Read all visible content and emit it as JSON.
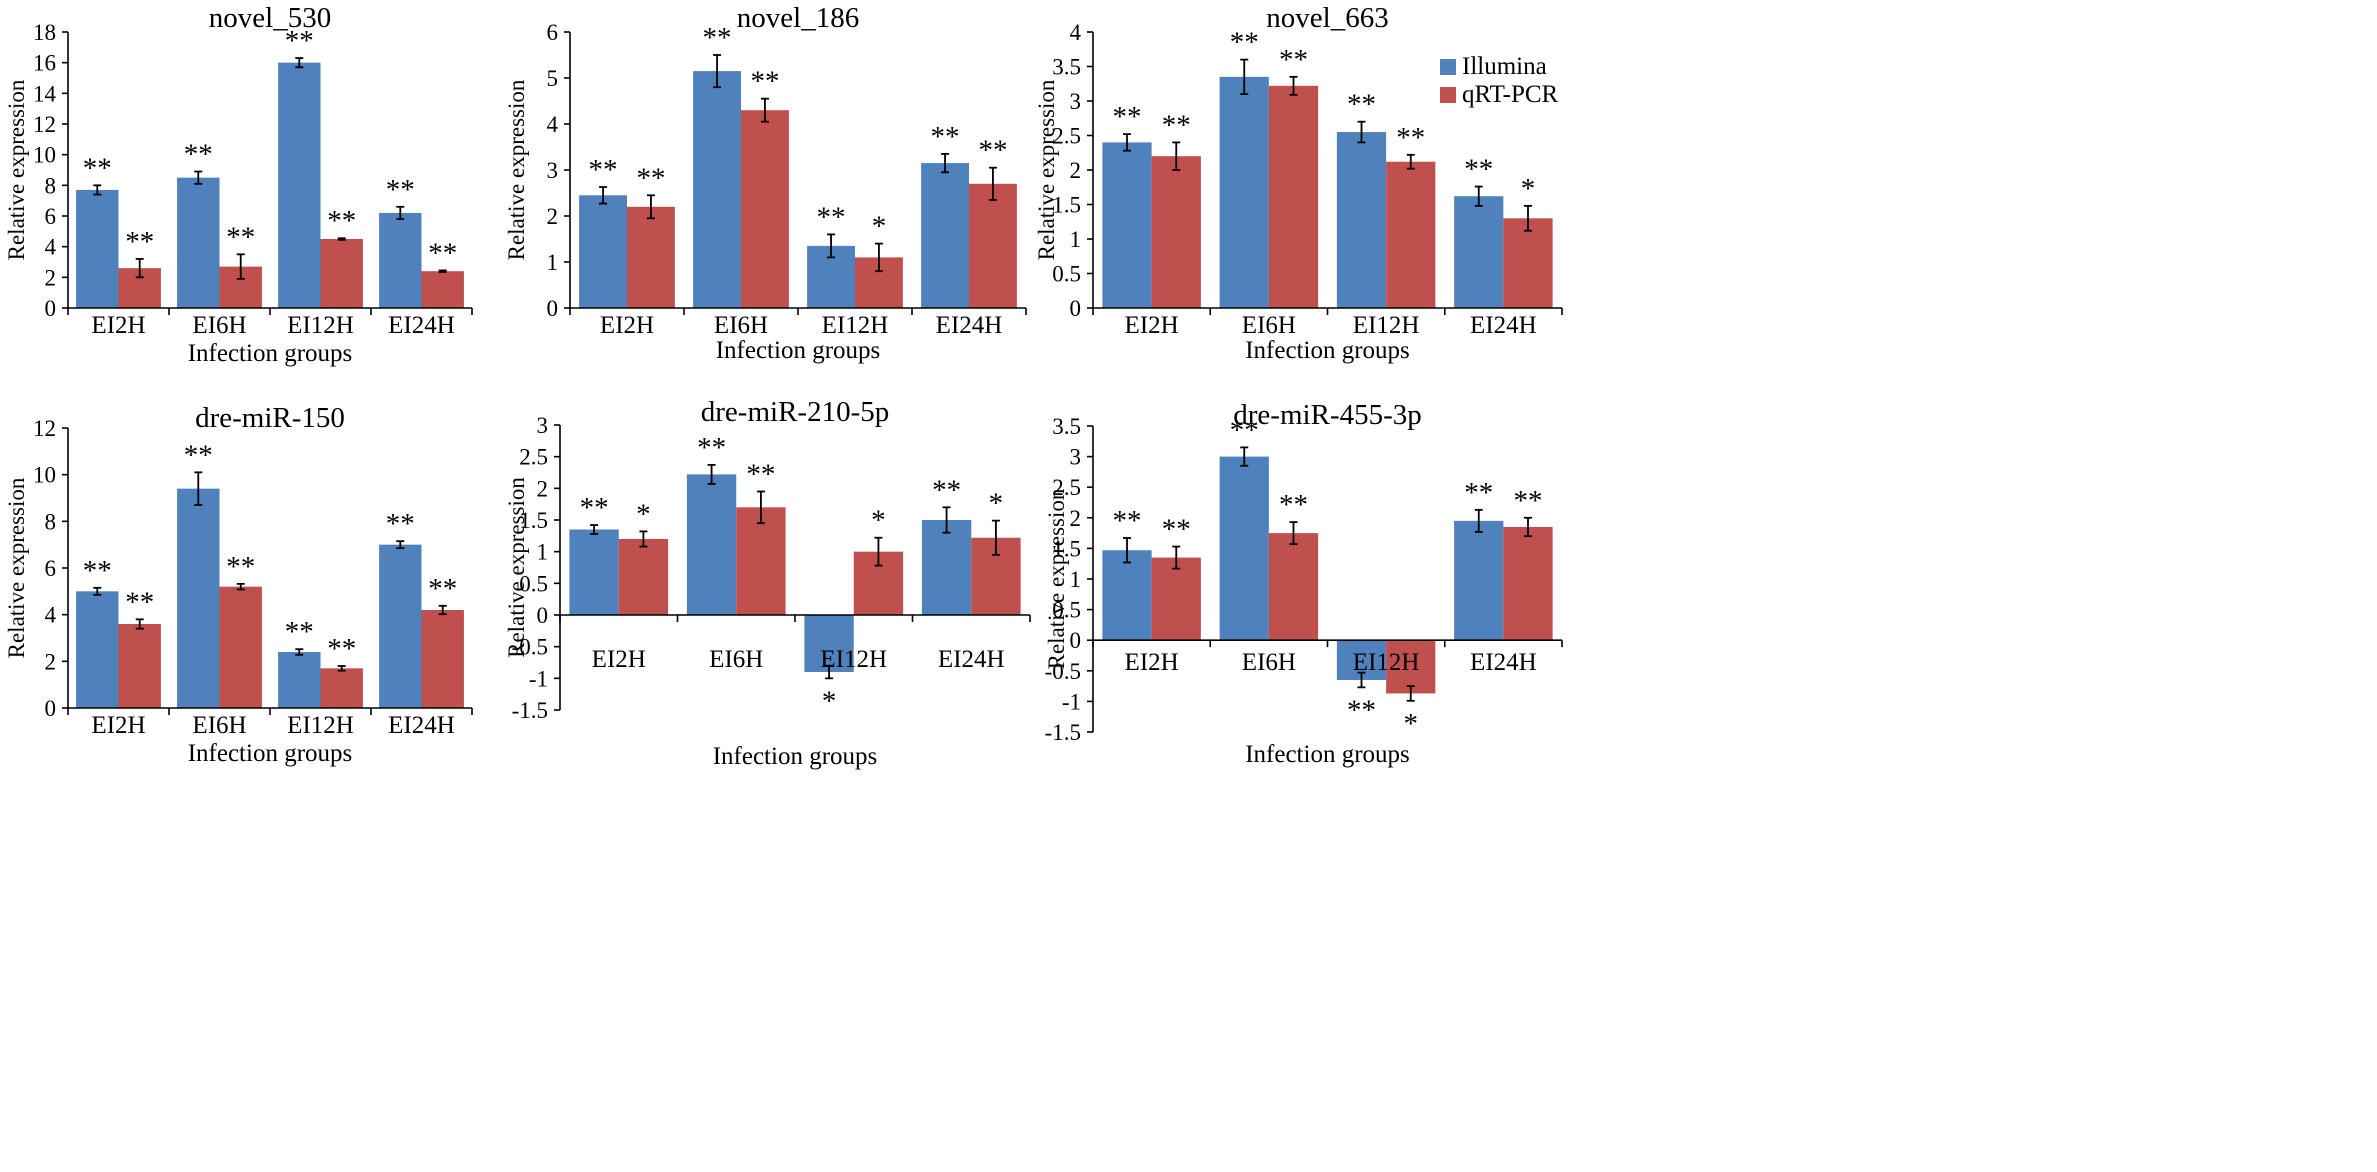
{
  "legend": [
    {
      "name": "Illumina",
      "color": "#4f81bd"
    },
    {
      "name": "qRT-PCR",
      "color": "#c0504d"
    }
  ],
  "chart_data": [
    {
      "type": "bar",
      "title": "novel_530",
      "categories": [
        "EI2H",
        "EI6H",
        "EI12H",
        "EI24H"
      ],
      "xlabel": "Infection groups",
      "ylabel": "Relative expression",
      "ylim": [
        0,
        18
      ],
      "yticks": [
        "0",
        "2",
        "4",
        "6",
        "8",
        "10",
        "12",
        "14",
        "16",
        "18"
      ],
      "series": [
        {
          "name": "Illumina",
          "values": [
            7.7,
            8.5,
            16.0,
            6.2
          ],
          "errors": [
            0.3,
            0.4,
            0.3,
            0.4
          ],
          "significance": [
            "**",
            "**",
            "**",
            "**"
          ]
        },
        {
          "name": "qRT-PCR",
          "values": [
            2.6,
            2.7,
            4.5,
            2.4
          ],
          "errors": [
            0.6,
            0.8,
            0.05,
            0.05
          ],
          "significance": [
            "**",
            "**",
            "**",
            "**"
          ]
        }
      ]
    },
    {
      "type": "bar",
      "title": "novel_186",
      "categories": [
        "EI2H",
        "EI6H",
        "EI12H",
        "EI24H"
      ],
      "xlabel": "Infection groups",
      "ylabel": "Relative expression",
      "ylim": [
        0,
        6
      ],
      "yticks": [
        "0",
        "1",
        "2",
        "3",
        "4",
        "5",
        "6"
      ],
      "series": [
        {
          "name": "Illumina",
          "values": [
            2.45,
            5.15,
            1.35,
            3.15
          ],
          "errors": [
            0.18,
            0.35,
            0.25,
            0.2
          ],
          "significance": [
            "**",
            "**",
            "**",
            "**"
          ]
        },
        {
          "name": "qRT-PCR",
          "values": [
            2.2,
            4.3,
            1.1,
            2.7
          ],
          "errors": [
            0.25,
            0.25,
            0.3,
            0.35
          ],
          "significance": [
            "**",
            "**",
            "*",
            "**"
          ]
        }
      ]
    },
    {
      "type": "bar",
      "title": "novel_663",
      "categories": [
        "EI2H",
        "EI6H",
        "EI12H",
        "EI24H"
      ],
      "xlabel": "Infection groups",
      "ylabel": "Relative expression",
      "ylim": [
        0,
        4
      ],
      "yticks": [
        "0",
        "0.5",
        "1",
        "1.5",
        "2",
        "2.5",
        "3",
        "3.5",
        "4"
      ],
      "series": [
        {
          "name": "Illumina",
          "values": [
            2.4,
            3.35,
            2.55,
            1.62
          ],
          "errors": [
            0.12,
            0.25,
            0.15,
            0.14
          ],
          "significance": [
            "**",
            "**",
            "**",
            "**"
          ]
        },
        {
          "name": "qRT-PCR",
          "values": [
            2.2,
            3.22,
            2.12,
            1.3
          ],
          "errors": [
            0.2,
            0.13,
            0.1,
            0.18
          ],
          "significance": [
            "**",
            "**",
            "**",
            "*"
          ]
        }
      ]
    },
    {
      "type": "bar",
      "title": "dre-miR-150",
      "categories": [
        "EI2H",
        "EI6H",
        "EI12H",
        "EI24H"
      ],
      "xlabel": "Infection groups",
      "ylabel": "Relative expression",
      "ylim": [
        0,
        12
      ],
      "yticks": [
        "0",
        "2",
        "4",
        "6",
        "8",
        "10",
        "12"
      ],
      "series": [
        {
          "name": "Illumina",
          "values": [
            5.0,
            9.4,
            2.4,
            7.0
          ],
          "errors": [
            0.15,
            0.7,
            0.12,
            0.15
          ],
          "significance": [
            "**",
            "**",
            "**",
            "**"
          ]
        },
        {
          "name": "qRT-PCR",
          "values": [
            3.6,
            5.2,
            1.7,
            4.2
          ],
          "errors": [
            0.2,
            0.12,
            0.1,
            0.18
          ],
          "significance": [
            "**",
            "**",
            "**",
            "**"
          ]
        }
      ]
    },
    {
      "type": "bar",
      "title": "dre-miR-210-5p",
      "categories": [
        "EI2H",
        "EI6H",
        "EI12H",
        "EI24H"
      ],
      "xlabel": "Infection groups",
      "ylabel": "Relative expression",
      "ylim": [
        -1.5,
        3
      ],
      "yticks": [
        "-1.5",
        "-1",
        "-0.5",
        "0",
        "0.5",
        "1",
        "1.5",
        "2",
        "2.5",
        "3"
      ],
      "series": [
        {
          "name": "Illumina",
          "values": [
            1.35,
            2.22,
            -0.9,
            1.5
          ],
          "errors": [
            0.07,
            0.15,
            0.1,
            0.2
          ],
          "significance": [
            "**",
            "**",
            "*",
            "**"
          ]
        },
        {
          "name": "qRT-PCR",
          "values": [
            1.2,
            1.7,
            1.0,
            1.22
          ],
          "errors": [
            0.12,
            0.25,
            0.22,
            0.27
          ],
          "significance": [
            "*",
            "**",
            "*",
            "*"
          ]
        }
      ]
    },
    {
      "type": "bar",
      "title": "dre-miR-455-3p",
      "categories": [
        "EI2H",
        "EI6H",
        "EI12H",
        "EI24H"
      ],
      "xlabel": "Infection groups",
      "ylabel": "Relative expression",
      "ylim": [
        -1.5,
        3.5
      ],
      "yticks": [
        "-1.5",
        "-1",
        "-0.5",
        "0",
        "0.5",
        "1",
        "1.5",
        "2",
        "2.5",
        "3",
        "3.5"
      ],
      "series": [
        {
          "name": "Illumina",
          "values": [
            1.47,
            3.0,
            -0.65,
            1.95
          ],
          "errors": [
            0.2,
            0.15,
            0.12,
            0.18
          ],
          "significance": [
            "**",
            "**",
            "**",
            "**"
          ]
        },
        {
          "name": "qRT-PCR",
          "values": [
            1.35,
            1.75,
            -0.87,
            1.85
          ],
          "errors": [
            0.18,
            0.18,
            0.12,
            0.15
          ],
          "significance": [
            "**",
            "**",
            "*",
            "**"
          ]
        }
      ]
    }
  ]
}
